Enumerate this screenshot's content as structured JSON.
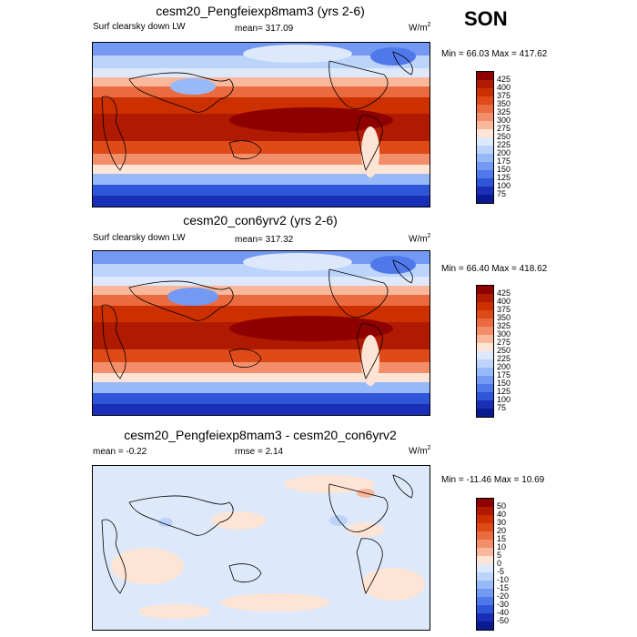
{
  "season": "SON",
  "panels": [
    {
      "title": "cesm20_Pengfeiexp8mam3 (yrs 2-6)",
      "left_label": "Surf clearsky down LW",
      "center_label": "mean= 317.09",
      "units": "W/m",
      "units_sup": "2",
      "minmax": "Min =  66.03 Max = 417.62",
      "colorbar_labels": [
        "425",
        "400",
        "375",
        "350",
        "325",
        "300",
        "275",
        "250",
        "225",
        "200",
        "175",
        "150",
        "125",
        "100",
        "75"
      ],
      "colorbar_colors": [
        "#8e0000",
        "#b01a00",
        "#cc3000",
        "#de4b18",
        "#ea6b3f",
        "#f38e6b",
        "#f9b89c",
        "#fde4d4",
        "#dde9fb",
        "#bcd3fa",
        "#98b9f8",
        "#7399f2",
        "#4f78ea",
        "#2f55d8",
        "#1a2fb8",
        "#0a1a90"
      ]
    },
    {
      "title": "cesm20_con6yrv2 (yrs 2-6)",
      "left_label": "Surf clearsky down LW",
      "center_label": "mean= 317.32",
      "units": "W/m",
      "units_sup": "2",
      "minmax": "Min =  66.40 Max = 418.62",
      "colorbar_labels": [
        "425",
        "400",
        "375",
        "350",
        "325",
        "300",
        "275",
        "250",
        "225",
        "200",
        "175",
        "150",
        "125",
        "100",
        "75"
      ],
      "colorbar_colors": [
        "#8e0000",
        "#b01a00",
        "#cc3000",
        "#de4b18",
        "#ea6b3f",
        "#f38e6b",
        "#f9b89c",
        "#fde4d4",
        "#dde9fb",
        "#bcd3fa",
        "#98b9f8",
        "#7399f2",
        "#4f78ea",
        "#2f55d8",
        "#1a2fb8",
        "#0a1a90"
      ]
    },
    {
      "title": "cesm20_Pengfeiexp8mam3 - cesm20_con6yrv2",
      "left_label": "mean =  -0.22",
      "center_label": "rmse =   2.14",
      "units": "W/m",
      "units_sup": "2",
      "minmax": "Min = -11.46 Max =  10.69",
      "colorbar_labels": [
        "50",
        "40",
        "30",
        "20",
        "15",
        "10",
        "5",
        "0",
        "-5",
        "-10",
        "-15",
        "-20",
        "-30",
        "-40",
        "-50"
      ],
      "colorbar_colors": [
        "#8e0000",
        "#b01a00",
        "#cc3000",
        "#de4b18",
        "#ea6b3f",
        "#f38e6b",
        "#f9b89c",
        "#fde4d4",
        "#dde9fb",
        "#bcd3fa",
        "#98b9f8",
        "#7399f2",
        "#4f78ea",
        "#2f55d8",
        "#1a2fb8",
        "#0a1a90"
      ]
    }
  ]
}
